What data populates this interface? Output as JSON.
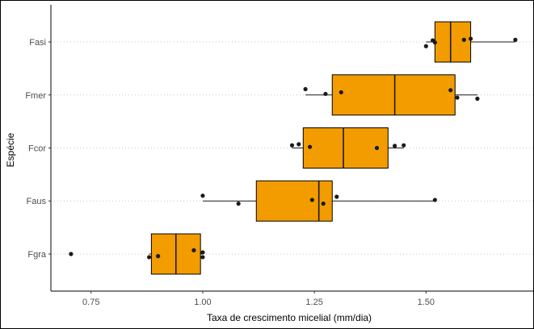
{
  "chart_data": {
    "type": "boxplot",
    "orientation": "horizontal",
    "title": "",
    "xlabel": "Taxa de crescimento micelial (mm/dia)",
    "ylabel": "Espécie",
    "xlim": [
      0.66,
      1.74
    ],
    "xticks": [
      0.75,
      1.0,
      1.25,
      1.5
    ],
    "xtick_labels": [
      "0.75",
      "1.00",
      "1.25",
      "1.50"
    ],
    "categories": [
      "Fgra",
      "Faus",
      "Fcor",
      "Fmer",
      "Fasi"
    ],
    "grid": "horizontal dotted at categories",
    "box_fill": "#f29c00",
    "box_stroke": "#000000",
    "point_color": "#1a1a1a",
    "boxes": [
      {
        "name": "Fgra",
        "whisker_low": 0.88,
        "q1": 0.885,
        "median": 0.94,
        "q3": 0.995,
        "whisker_high": 1.0,
        "outliers": [
          0.705
        ]
      },
      {
        "name": "Faus",
        "whisker_low": 1.0,
        "q1": 1.12,
        "median": 1.26,
        "q3": 1.29,
        "whisker_high": 1.52,
        "outliers": []
      },
      {
        "name": "Fcor",
        "whisker_low": 1.2,
        "q1": 1.225,
        "median": 1.315,
        "q3": 1.415,
        "whisker_high": 1.45,
        "outliers": []
      },
      {
        "name": "Fmer",
        "whisker_low": 1.23,
        "q1": 1.29,
        "median": 1.43,
        "q3": 1.565,
        "whisker_high": 1.615,
        "outliers": []
      },
      {
        "name": "Fasi",
        "whisker_low": 1.5,
        "q1": 1.52,
        "median": 1.555,
        "q3": 1.6,
        "whisker_high": 1.7,
        "outliers": []
      }
    ],
    "points": [
      {
        "category": "Fgra",
        "x": 0.705,
        "y_offset": 0.0
      },
      {
        "category": "Fgra",
        "x": 0.88,
        "y_offset": -0.06
      },
      {
        "category": "Fgra",
        "x": 0.9,
        "y_offset": -0.04
      },
      {
        "category": "Fgra",
        "x": 0.98,
        "y_offset": 0.07
      },
      {
        "category": "Fgra",
        "x": 1.0,
        "y_offset": 0.03
      },
      {
        "category": "Fgra",
        "x": 1.0,
        "y_offset": -0.06
      },
      {
        "category": "Faus",
        "x": 1.0,
        "y_offset": 0.1
      },
      {
        "category": "Faus",
        "x": 1.08,
        "y_offset": -0.05
      },
      {
        "category": "Faus",
        "x": 1.245,
        "y_offset": 0.02
      },
      {
        "category": "Faus",
        "x": 1.27,
        "y_offset": -0.05
      },
      {
        "category": "Faus",
        "x": 1.3,
        "y_offset": 0.08
      },
      {
        "category": "Faus",
        "x": 1.52,
        "y_offset": 0.02
      },
      {
        "category": "Fcor",
        "x": 1.2,
        "y_offset": 0.05
      },
      {
        "category": "Fcor",
        "x": 1.215,
        "y_offset": 0.07
      },
      {
        "category": "Fcor",
        "x": 1.24,
        "y_offset": 0.02
      },
      {
        "category": "Fcor",
        "x": 1.39,
        "y_offset": 0.0
      },
      {
        "category": "Fcor",
        "x": 1.43,
        "y_offset": 0.04
      },
      {
        "category": "Fcor",
        "x": 1.45,
        "y_offset": 0.05
      },
      {
        "category": "Fmer",
        "x": 1.23,
        "y_offset": 0.11
      },
      {
        "category": "Fmer",
        "x": 1.275,
        "y_offset": 0.02
      },
      {
        "category": "Fmer",
        "x": 1.31,
        "y_offset": 0.05
      },
      {
        "category": "Fmer",
        "x": 1.555,
        "y_offset": 0.09
      },
      {
        "category": "Fmer",
        "x": 1.57,
        "y_offset": -0.05
      },
      {
        "category": "Fmer",
        "x": 1.615,
        "y_offset": -0.07
      },
      {
        "category": "Fasi",
        "x": 1.5,
        "y_offset": -0.08
      },
      {
        "category": "Fasi",
        "x": 1.515,
        "y_offset": 0.03
      },
      {
        "category": "Fasi",
        "x": 1.52,
        "y_offset": -0.01
      },
      {
        "category": "Fasi",
        "x": 1.585,
        "y_offset": 0.04
      },
      {
        "category": "Fasi",
        "x": 1.6,
        "y_offset": 0.06
      },
      {
        "category": "Fasi",
        "x": 1.7,
        "y_offset": 0.04
      }
    ]
  }
}
